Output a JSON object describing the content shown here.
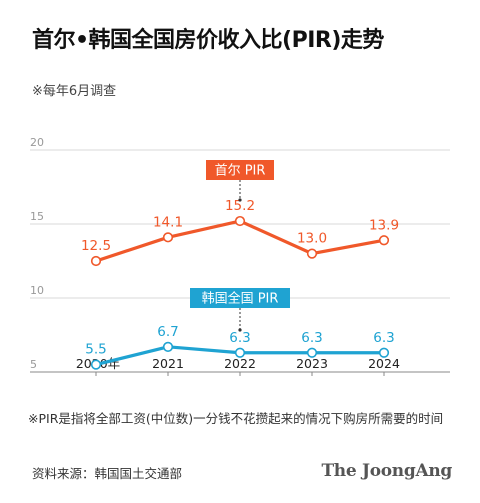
{
  "header": {
    "title": "首尔•韩国全国房价收入比(PIR)走势",
    "subtitle": "※每年6月调查"
  },
  "footer": {
    "note": "※PIR是指将全部工资(中位数)一分钱不花攒起来的情况下购房所需要的时间",
    "source": "资料来源：韩国国土交通部",
    "brand": "The JoongAng"
  },
  "colors": {
    "seoul": "#f0582a",
    "national": "#1fa3d2",
    "grid": "#d9d9d9",
    "axis": "#888888"
  },
  "chart_data": {
    "type": "line",
    "categories": [
      "2020年",
      "2021",
      "2022",
      "2023",
      "2024"
    ],
    "ylim": [
      5,
      20
    ],
    "yticks": [
      5,
      10,
      15,
      20
    ],
    "grid": true,
    "series": [
      {
        "name": "首尔 PIR",
        "color": "#f0582a",
        "values": [
          12.5,
          14.1,
          15.2,
          13.0,
          13.9
        ],
        "labels": [
          "12.5",
          "14.1",
          "15.2",
          "13.0",
          "13.9"
        ]
      },
      {
        "name": "韩国全国 PIR",
        "color": "#1fa3d2",
        "values": [
          5.5,
          6.7,
          6.3,
          6.3,
          6.3
        ],
        "labels": [
          "5.5",
          "6.7",
          "6.3",
          "6.3",
          "6.3"
        ]
      }
    ]
  }
}
